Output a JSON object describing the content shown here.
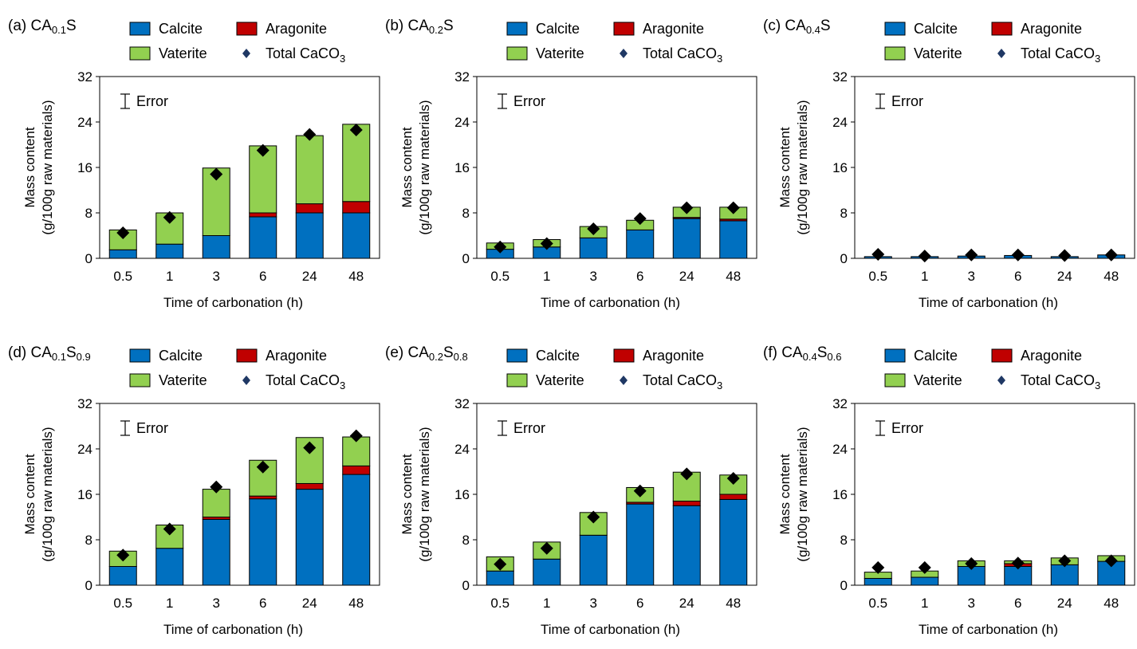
{
  "legend": {
    "calcite": "Calcite",
    "aragonite": "Aragonite",
    "vaterite": "Vaterite",
    "total_prefix": "Total CaCO",
    "total_sub": "3",
    "error": "Error"
  },
  "colors": {
    "calcite": "#0070C0",
    "aragonite": "#C00000",
    "vaterite": "#92D050",
    "total_marker": "#000000",
    "legend_marker": "#1F3864"
  },
  "chart_data": [
    {
      "type": "bar",
      "stacked": true,
      "label_prefix": "(a) CA",
      "label_parts": [
        {
          "text": "0.1",
          "sub": true
        },
        {
          "text": "S",
          "sub": false
        }
      ],
      "categories": [
        "0.5",
        "1",
        "3",
        "6",
        "24",
        "48"
      ],
      "xlabel": "Time of carbonation (h)",
      "ylabel_line1": "Mass content",
      "ylabel_line2": "(g/100g raw materials)",
      "ylim": [
        0,
        32
      ],
      "yticks": [
        "0",
        "8",
        "16",
        "24",
        "32"
      ],
      "series": [
        {
          "name": "Calcite",
          "values": [
            1.5,
            2.5,
            4.0,
            7.3,
            8.0,
            8.0
          ]
        },
        {
          "name": "Aragonite",
          "values": [
            0,
            0,
            0,
            0.7,
            1.6,
            2.0
          ]
        },
        {
          "name": "Vaterite",
          "values": [
            3.5,
            5.5,
            11.9,
            11.8,
            12.0,
            13.6
          ]
        }
      ],
      "total": [
        4.5,
        7.2,
        14.8,
        19.0,
        21.8,
        22.6
      ]
    },
    {
      "type": "bar",
      "stacked": true,
      "label_prefix": "(b) CA",
      "label_parts": [
        {
          "text": "0.2",
          "sub": true
        },
        {
          "text": "S",
          "sub": false
        }
      ],
      "categories": [
        "0.5",
        "1",
        "3",
        "6",
        "24",
        "48"
      ],
      "xlabel": "Time of carbonation (h)",
      "ylabel_line1": "Mass content",
      "ylabel_line2": "(g/100g raw materials)",
      "ylim": [
        0,
        32
      ],
      "yticks": [
        "0",
        "8",
        "16",
        "24",
        "32"
      ],
      "series": [
        {
          "name": "Calcite",
          "values": [
            1.6,
            2.0,
            3.6,
            5.0,
            7.0,
            6.6
          ]
        },
        {
          "name": "Aragonite",
          "values": [
            0,
            0,
            0,
            0,
            0.2,
            0.3
          ]
        },
        {
          "name": "Vaterite",
          "values": [
            1.1,
            1.3,
            2.0,
            1.7,
            1.8,
            2.1
          ]
        }
      ],
      "total": [
        2.0,
        2.6,
        5.2,
        7.0,
        8.9,
        8.9
      ]
    },
    {
      "type": "bar",
      "stacked": true,
      "label_prefix": "(c) CA",
      "label_parts": [
        {
          "text": "0.4",
          "sub": true
        },
        {
          "text": "S",
          "sub": false
        }
      ],
      "categories": [
        "0.5",
        "1",
        "3",
        "6",
        "24",
        "48"
      ],
      "xlabel": "Time of carbonation (h)",
      "ylabel_line1": "Mass content",
      "ylabel_line2": "(g/100g raw materials)",
      "ylim": [
        0,
        32
      ],
      "yticks": [
        "0",
        "8",
        "16",
        "24",
        "32"
      ],
      "series": [
        {
          "name": "Calcite",
          "values": [
            0.3,
            0.3,
            0.4,
            0.5,
            0.3,
            0.6
          ]
        },
        {
          "name": "Aragonite",
          "values": [
            0,
            0,
            0,
            0,
            0,
            0
          ]
        },
        {
          "name": "Vaterite",
          "values": [
            0,
            0,
            0,
            0,
            0,
            0
          ]
        }
      ],
      "total": [
        0.7,
        0.4,
        0.6,
        0.6,
        0.5,
        0.6
      ]
    },
    {
      "type": "bar",
      "stacked": true,
      "label_prefix": "(d) CA",
      "label_parts": [
        {
          "text": "0.1",
          "sub": true
        },
        {
          "text": "S",
          "sub": false
        },
        {
          "text": "0.9",
          "sub": true
        }
      ],
      "categories": [
        "0.5",
        "1",
        "3",
        "6",
        "24",
        "48"
      ],
      "xlabel": "Time of carbonation (h)",
      "ylabel_line1": "Mass content",
      "ylabel_line2": "(g/100g raw materials)",
      "ylim": [
        0,
        32
      ],
      "yticks": [
        "0",
        "8",
        "16",
        "24",
        "32"
      ],
      "series": [
        {
          "name": "Calcite",
          "values": [
            3.3,
            6.5,
            11.6,
            15.2,
            16.9,
            19.5
          ]
        },
        {
          "name": "Aragonite",
          "values": [
            0,
            0,
            0.4,
            0.5,
            1.0,
            1.5
          ]
        },
        {
          "name": "Vaterite",
          "values": [
            2.7,
            4.1,
            4.9,
            6.3,
            8.1,
            5.1
          ]
        }
      ],
      "total": [
        5.3,
        9.9,
        17.3,
        20.8,
        24.2,
        26.3
      ]
    },
    {
      "type": "bar",
      "stacked": true,
      "label_prefix": "(e) CA",
      "label_parts": [
        {
          "text": "0.2",
          "sub": true
        },
        {
          "text": "S",
          "sub": false
        },
        {
          "text": "0.8",
          "sub": true
        }
      ],
      "categories": [
        "0.5",
        "1",
        "3",
        "6",
        "24",
        "48"
      ],
      "xlabel": "Time of carbonation (h)",
      "ylabel_line1": "Mass content",
      "ylabel_line2": "(g/100g raw materials)",
      "ylim": [
        0,
        32
      ],
      "yticks": [
        "0",
        "8",
        "16",
        "24",
        "32"
      ],
      "series": [
        {
          "name": "Calcite",
          "values": [
            2.5,
            4.6,
            8.8,
            14.3,
            14.0,
            15.1
          ]
        },
        {
          "name": "Aragonite",
          "values": [
            0,
            0,
            0,
            0.3,
            0.8,
            0.9
          ]
        },
        {
          "name": "Vaterite",
          "values": [
            2.5,
            3.0,
            4.0,
            2.6,
            5.1,
            3.4
          ]
        }
      ],
      "total": [
        3.7,
        6.5,
        12.0,
        16.6,
        19.6,
        18.8
      ]
    },
    {
      "type": "bar",
      "stacked": true,
      "label_prefix": "(f) CA",
      "label_parts": [
        {
          "text": "0.4",
          "sub": true
        },
        {
          "text": "S",
          "sub": false
        },
        {
          "text": "0.6",
          "sub": true
        }
      ],
      "categories": [
        "0.5",
        "1",
        "3",
        "6",
        "24",
        "48"
      ],
      "xlabel": "Time of carbonation (h)",
      "ylabel_line1": "Mass content",
      "ylabel_line2": "(g/100g raw materials)",
      "ylim": [
        0,
        32
      ],
      "yticks": [
        "0",
        "8",
        "16",
        "24",
        "32"
      ],
      "series": [
        {
          "name": "Calcite",
          "values": [
            1.2,
            1.4,
            3.3,
            3.3,
            3.6,
            4.2
          ]
        },
        {
          "name": "Aragonite",
          "values": [
            0,
            0,
            0,
            0.5,
            0,
            0
          ]
        },
        {
          "name": "Vaterite",
          "values": [
            1.1,
            1.1,
            1.0,
            0.5,
            1.2,
            1.0
          ]
        }
      ],
      "total": [
        3.1,
        3.1,
        3.8,
        3.9,
        4.3,
        4.3
      ]
    }
  ]
}
